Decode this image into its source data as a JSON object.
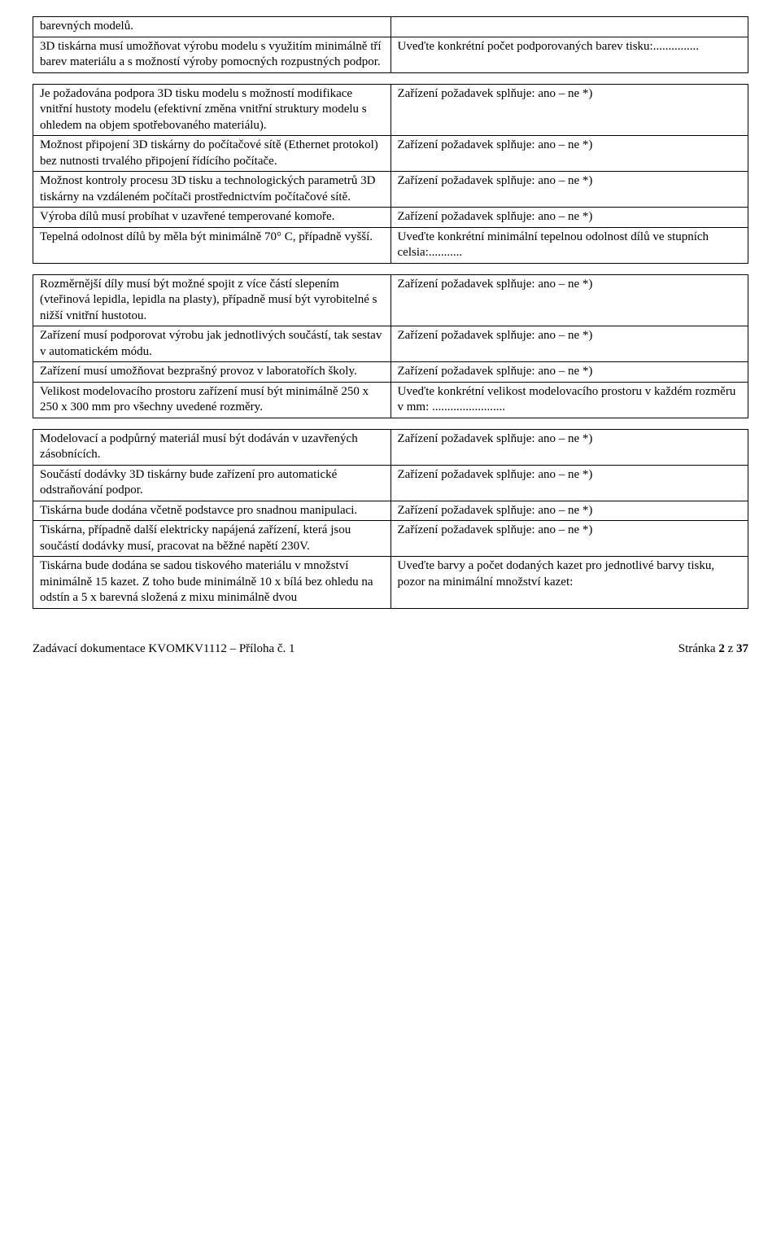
{
  "rows": [
    {
      "left": "barevných modelů.",
      "right": ""
    },
    {
      "left": "3D tiskárna musí umožňovat výrobu modelu s využitím minimálně tří barev materiálu a s možností výroby pomocných rozpustných podpor.",
      "right": "Uveďte konkrétní počet podporovaných barev tisku:..............."
    },
    {
      "spacer": true
    },
    {
      "left": "Je požadována podpora 3D tisku modelu s možností modifikace vnitřní hustoty modelu (efektivní změna vnitřní struktury modelu s ohledem na objem spotřebovaného materiálu).",
      "right": "Zařízení požadavek splňuje: ano – ne *)"
    },
    {
      "left": "Možnost připojení 3D tiskárny do počítačové sítě (Ethernet protokol) bez nutnosti trvalého připojení řídícího počítače.",
      "right": "Zařízení požadavek splňuje: ano – ne *)"
    },
    {
      "left": "Možnost kontroly procesu 3D tisku a technologických parametrů 3D tiskárny na vzdáleném počítači prostřednictvím počítačové sítě.",
      "right": "Zařízení požadavek splňuje: ano – ne *)"
    },
    {
      "left": "Výroba dílů musí probíhat v uzavřené temperované komoře.",
      "right": "Zařízení požadavek splňuje: ano – ne *)"
    },
    {
      "left": "Tepelná odolnost dílů by měla být minimálně 70° C, případně vyšší.",
      "right": "Uveďte konkrétní minimální tepelnou odolnost dílů ve stupních celsia:..........."
    },
    {
      "spacer": true
    },
    {
      "left": "Rozměrnější díly musí být možné spojit z více částí slepením (vteřinová lepidla, lepidla na plasty), případně musí být vyrobitelné s nižší vnitřní hustotou.",
      "right": "Zařízení požadavek splňuje: ano – ne *)"
    },
    {
      "left": "Zařízení musí podporovat výrobu jak jednotlivých součástí, tak sestav v automatickém módu.",
      "right": "Zařízení požadavek splňuje: ano – ne *)"
    },
    {
      "left": "Zařízení musí umožňovat bezprašný provoz v laboratořích školy.",
      "right": "Zařízení požadavek splňuje: ano – ne *)"
    },
    {
      "left": "Velikost modelovacího prostoru zařízení musí být minimálně 250 x 250 x 300 mm pro všechny uvedené rozměry.",
      "right": "Uveďte konkrétní velikost modelovacího prostoru v každém rozměru v mm: ........................"
    },
    {
      "spacer": true
    },
    {
      "left": "Modelovací a podpůrný materiál musí být dodáván v uzavřených zásobnících.",
      "right": "Zařízení požadavek splňuje: ano – ne *)"
    },
    {
      "left": "Součástí dodávky 3D tiskárny bude zařízení pro automatické odstraňování podpor.",
      "right": "Zařízení požadavek splňuje: ano – ne *)"
    },
    {
      "left": "Tiskárna bude dodána včetně podstavce pro snadnou manipulaci.",
      "right": "Zařízení požadavek splňuje: ano – ne *)"
    },
    {
      "left": "Tiskárna, případně další elektricky napájená zařízení, která jsou součástí dodávky musí, pracovat na běžné napětí 230V.",
      "right": "Zařízení požadavek splňuje: ano – ne *)"
    },
    {
      "left": "Tiskárna bude dodána se sadou tiskového materiálu v množství minimálně 15 kazet. Z toho bude minimálně 10 x bílá bez ohledu na odstín a 5 x barevná složená z mixu minimálně dvou",
      "right": "Uveďte barvy a počet dodaných kazet pro jednotlivé barvy tisku, pozor na minimální množství kazet:"
    }
  ],
  "footer": {
    "left": "Zadávací dokumentace KVOMKV1112 – Příloha č. 1",
    "right": "Stránka 2 z 37"
  },
  "bold_segments": {
    "footer_right_bold": "2"
  }
}
